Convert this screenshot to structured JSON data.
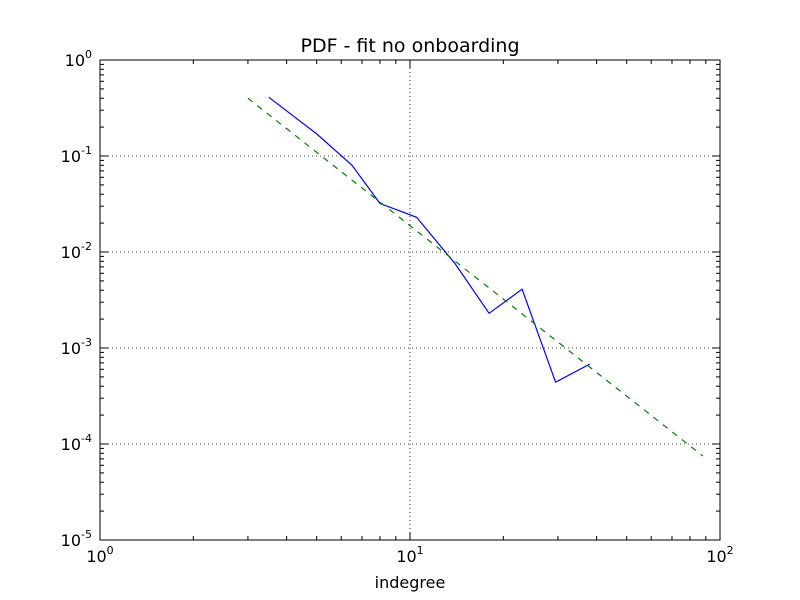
{
  "chart_data": {
    "type": "line",
    "title": "PDF - fit no onboarding",
    "xlabel": "indegree",
    "ylabel": "",
    "xscale": "log",
    "yscale": "log",
    "xlim": [
      1,
      100
    ],
    "ylim": [
      1e-05,
      1
    ],
    "grid": true,
    "legend": "none",
    "xticks": [
      {
        "value": 1,
        "base": "10",
        "exp": "0"
      },
      {
        "value": 10,
        "base": "10",
        "exp": "1"
      },
      {
        "value": 100,
        "base": "10",
        "exp": "2"
      }
    ],
    "yticks": [
      {
        "value": 1,
        "base": "10",
        "exp": "0"
      },
      {
        "value": 0.1,
        "base": "10",
        "exp": "-1"
      },
      {
        "value": 0.01,
        "base": "10",
        "exp": "-2"
      },
      {
        "value": 0.001,
        "base": "10",
        "exp": "-3"
      },
      {
        "value": 0.0001,
        "base": "10",
        "exp": "-4"
      },
      {
        "value": 1e-05,
        "base": "10",
        "exp": "-5"
      }
    ],
    "series": [
      {
        "style": "solid",
        "color": "#0000ff",
        "x": [
          3.5,
          5.0,
          6.5,
          8.0,
          10.5,
          14.0,
          18.0,
          23.0,
          29.5,
          38.0
        ],
        "y": [
          0.41,
          0.17,
          0.08,
          0.032,
          0.023,
          0.0075,
          0.0023,
          0.0041,
          0.00044,
          0.00068
        ]
      },
      {
        "style": "dashed",
        "color": "#008000",
        "x": [
          3.0,
          88.0
        ],
        "y": [
          0.4,
          7.5e-05
        ]
      }
    ]
  }
}
